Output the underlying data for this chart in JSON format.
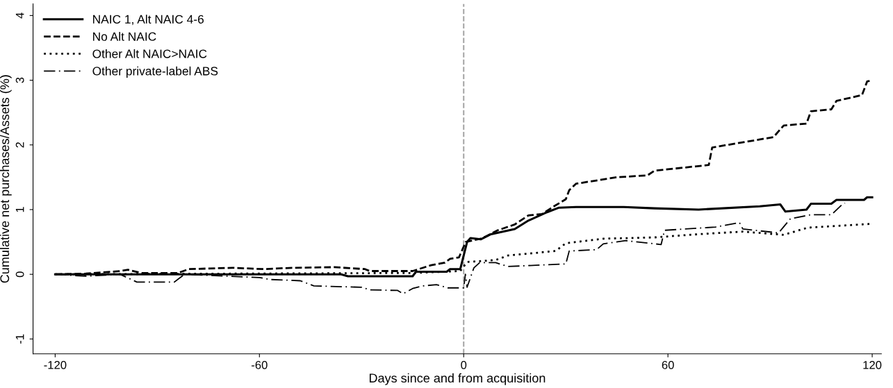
{
  "chart_data": {
    "type": "line",
    "xlabel": "Days since and from acquisition",
    "ylabel": "Cumulative net purchases/Assets (%)",
    "xlim": [
      -126.5,
      122.7
    ],
    "ylim": [
      -1.23,
      4.18
    ],
    "xticks": [
      -120,
      -60,
      0,
      60,
      120
    ],
    "yticks": [
      -1,
      0,
      1,
      2,
      3,
      4
    ],
    "grid": false,
    "legend": "top left",
    "marker": "none",
    "ref_lines": [
      {
        "axis": "x",
        "value": 0,
        "color": "#a6a6a6",
        "line_style": "dashed"
      }
    ],
    "series": [
      {
        "name": "NAIC 1, Alt NAIC 4-6",
        "color": "#000000",
        "line_style": "solid",
        "x": [
          -120,
          -36,
          -34,
          -15,
          -14,
          -5,
          -4,
          -1,
          1,
          2,
          5,
          8,
          15,
          19,
          24.5,
          28,
          33,
          47,
          56,
          69,
          87,
          93,
          94.5,
          100.7,
          102,
          108,
          109.5,
          117.6,
          118.5,
          120
        ],
        "values": [
          0,
          0,
          -0.03,
          -0.03,
          0.04,
          0.04,
          0.08,
          0.08,
          0.5,
          0.56,
          0.54,
          0.62,
          0.7,
          0.83,
          0.96,
          1.03,
          1.04,
          1.04,
          1.02,
          1.0,
          1.05,
          1.08,
          0.97,
          1.0,
          1.09,
          1.09,
          1.15,
          1.15,
          1.19,
          1.19
        ]
      },
      {
        "name": "No Alt NAIC",
        "color": "#000000",
        "line_style": "dashed",
        "x": [
          -120,
          -111,
          -101,
          -98.6,
          -94.6,
          -84,
          -80.7,
          -68,
          -58.6,
          -50.4,
          -38,
          -29,
          -27.6,
          -15,
          -9.6,
          -5.5,
          -4,
          -1.4,
          0.6,
          5,
          6.7,
          10,
          15,
          19,
          23,
          26.5,
          30,
          31,
          33,
          45,
          54,
          56,
          72,
          73,
          91,
          94,
          100.7,
          102,
          108,
          109.5,
          117,
          118.5,
          120
        ],
        "values": [
          0,
          0.01,
          0.05,
          0.07,
          0.02,
          0.02,
          0.08,
          0.1,
          0.08,
          0.1,
          0.11,
          0.08,
          0.05,
          0.05,
          0.14,
          0.18,
          0.24,
          0.26,
          0.5,
          0.55,
          0.59,
          0.68,
          0.77,
          0.91,
          0.93,
          1.05,
          1.16,
          1.3,
          1.4,
          1.5,
          1.53,
          1.6,
          1.69,
          1.96,
          2.12,
          2.3,
          2.33,
          2.52,
          2.55,
          2.68,
          2.77,
          2.98,
          3.0
        ]
      },
      {
        "name": "Other Alt NAIC>NAIC",
        "color": "#000000",
        "line_style": "dotted",
        "x": [
          -120,
          -15,
          -1,
          1,
          9.4,
          13,
          27,
          30,
          41,
          56,
          69,
          82,
          94,
          101,
          119.7
        ],
        "values": [
          0,
          0.02,
          0.05,
          0.19,
          0.22,
          0.29,
          0.36,
          0.48,
          0.55,
          0.57,
          0.62,
          0.66,
          0.61,
          0.72,
          0.78
        ]
      },
      {
        "name": "Other private-label ABS",
        "color": "#000000",
        "line_style": "dashdot",
        "x": [
          -120,
          -111,
          -101,
          -96,
          -85,
          -82,
          -60,
          -57,
          -48,
          -44,
          -30,
          -27.6,
          -19.4,
          -17.8,
          -15,
          -12,
          -8,
          -4.7,
          0,
          0.5,
          1,
          3,
          4.7,
          9.4,
          13,
          30,
          31,
          39,
          41,
          47.6,
          58,
          59,
          74,
          81,
          82,
          92.5,
          96,
          102,
          108,
          111,
          112
        ],
        "values": [
          0,
          -0.03,
          0,
          -0.12,
          -0.12,
          0,
          -0.05,
          -0.08,
          -0.1,
          -0.18,
          -0.2,
          -0.24,
          -0.25,
          -0.3,
          -0.22,
          -0.18,
          -0.16,
          -0.21,
          -0.21,
          0.0,
          -0.2,
          0.1,
          0.18,
          0.18,
          0.12,
          0.16,
          0.36,
          0.38,
          0.47,
          0.52,
          0.46,
          0.68,
          0.73,
          0.8,
          0.7,
          0.64,
          0.86,
          0.92,
          0.92,
          1.07,
          1.1
        ]
      }
    ]
  }
}
